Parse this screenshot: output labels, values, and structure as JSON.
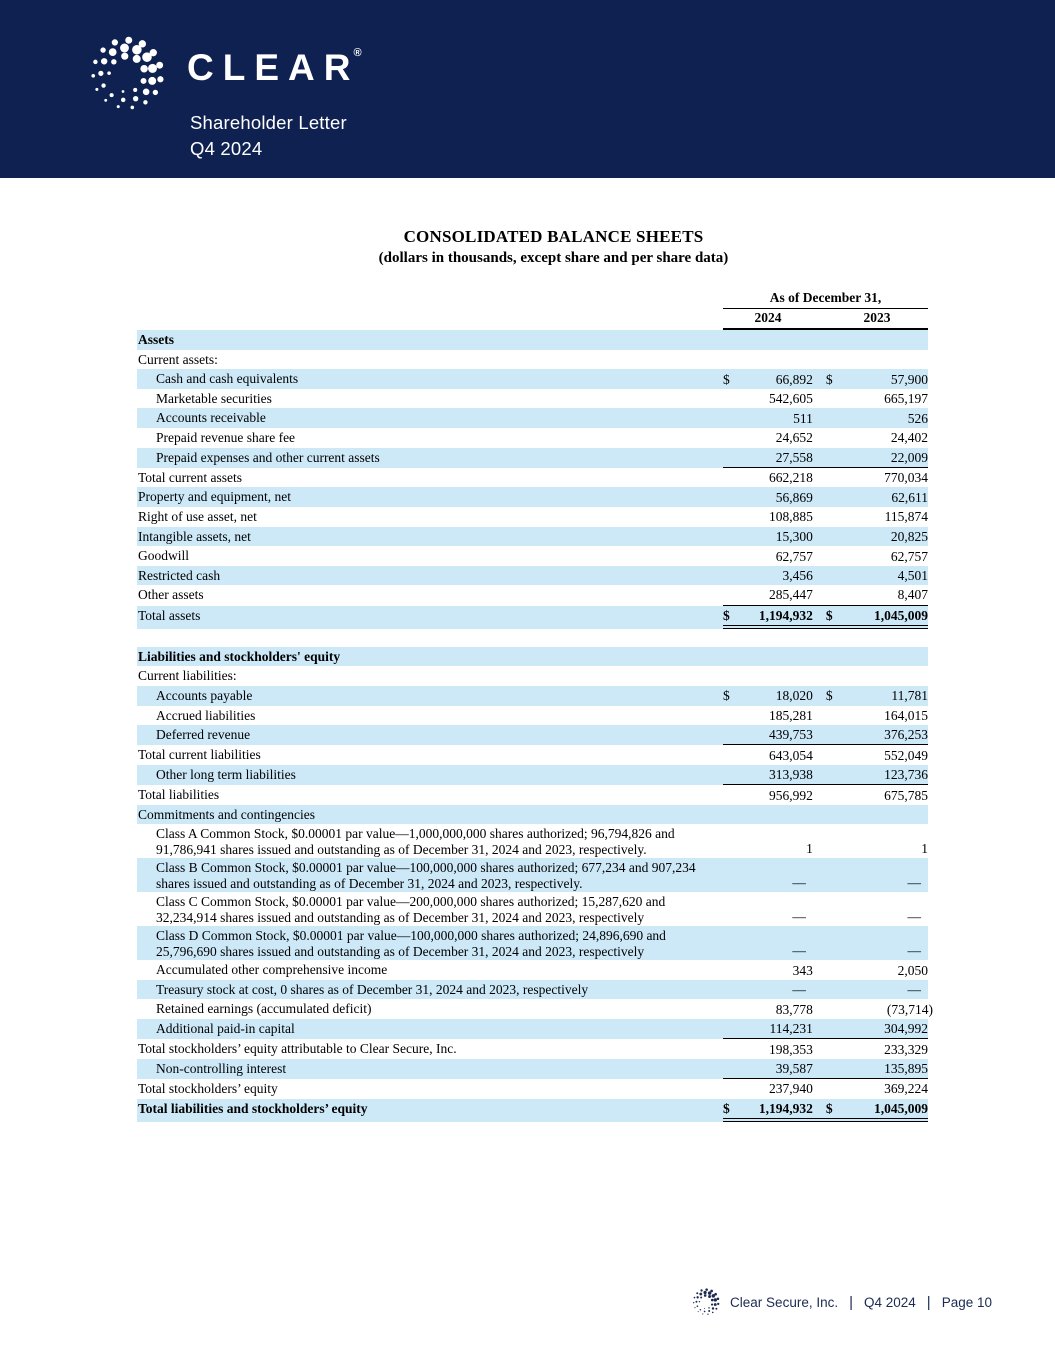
{
  "masthead": {
    "brand": "CLEAR",
    "registered_mark": "®",
    "subtitle_line1": "Shareholder Letter",
    "subtitle_line2": "Q4 2024"
  },
  "document": {
    "title": "CONSOLIDATED BALANCE SHEETS",
    "subtitle": "(dollars in thousands, except share and per share data)"
  },
  "table": {
    "period_header": "As of December 31,",
    "columns": [
      "2024",
      "2023"
    ],
    "rows": [
      {
        "label": "Assets",
        "shaded": true,
        "bold": true
      },
      {
        "label": "Current assets:"
      },
      {
        "label": "Cash and cash equivalents",
        "indent": true,
        "shaded": true,
        "dollar": true,
        "v2024": "66,892",
        "v2023": "57,900"
      },
      {
        "label": "Marketable securities",
        "indent": true,
        "v2024": "542,605",
        "v2023": "665,197"
      },
      {
        "label": "Accounts receivable",
        "indent": true,
        "shaded": true,
        "v2024": "511",
        "v2023": "526"
      },
      {
        "label": "Prepaid revenue share fee",
        "indent": true,
        "v2024": "24,652",
        "v2023": "24,402"
      },
      {
        "label": "Prepaid expenses and other current assets",
        "indent": true,
        "shaded": true,
        "rule": true,
        "v2024": "27,558",
        "v2023": "22,009"
      },
      {
        "label": "Total current assets",
        "v2024": "662,218",
        "v2023": "770,034"
      },
      {
        "label": "Property and equipment, net",
        "shaded": true,
        "v2024": "56,869",
        "v2023": "62,611"
      },
      {
        "label": "Right of use asset, net",
        "v2024": "108,885",
        "v2023": "115,874"
      },
      {
        "label": "Intangible assets, net",
        "shaded": true,
        "v2024": "15,300",
        "v2023": "20,825"
      },
      {
        "label": "Goodwill",
        "v2024": "62,757",
        "v2023": "62,757"
      },
      {
        "label": "Restricted cash",
        "shaded": true,
        "v2024": "3,456",
        "v2023": "4,501"
      },
      {
        "label": "Other assets",
        "rule": true,
        "v2024": "285,447",
        "v2023": "8,407"
      },
      {
        "label": "Total assets",
        "shaded": true,
        "dollar": true,
        "boldVals": true,
        "dbl": true,
        "v2024": "1,194,932",
        "v2023": "1,045,009"
      },
      {
        "spacer": true
      },
      {
        "label": "Liabilities and stockholders' equity",
        "shaded": true,
        "bold": true
      },
      {
        "label": "Current liabilities:"
      },
      {
        "label": "Accounts payable",
        "indent": true,
        "shaded": true,
        "dollar": true,
        "v2024": "18,020",
        "v2023": "11,781"
      },
      {
        "label": "Accrued liabilities",
        "indent": true,
        "v2024": "185,281",
        "v2023": "164,015"
      },
      {
        "label": "Deferred revenue",
        "indent": true,
        "shaded": true,
        "rule": true,
        "v2024": "439,753",
        "v2023": "376,253"
      },
      {
        "label": "Total current liabilities",
        "v2024": "643,054",
        "v2023": "552,049"
      },
      {
        "label": "Other long term liabilities",
        "indent": true,
        "shaded": true,
        "rule": true,
        "v2024": "313,938",
        "v2023": "123,736"
      },
      {
        "label": "Total liabilities",
        "v2024": "956,992",
        "v2023": "675,785"
      },
      {
        "label": "Commitments and contingencies",
        "shaded": true
      },
      {
        "label": "Class A Common Stock, $0.00001 par value—1,000,000,000 shares authorized; 96,794,826 and 91,786,941 shares issued and outstanding as of December 31, 2024 and 2023, respectively.",
        "indent": true,
        "tall": true,
        "v2024": "1",
        "v2023": "1"
      },
      {
        "label": "Class B Common Stock, $0.00001 par value—100,000,000 shares authorized; 677,234 and 907,234 shares issued and outstanding as of December 31, 2024 and 2023, respectively.",
        "indent": true,
        "tall": true,
        "shaded": true,
        "v2024": "—",
        "v2023": "—"
      },
      {
        "label": "Class C Common Stock, $0.00001 par value—200,000,000 shares authorized; 15,287,620 and 32,234,914 shares issued and outstanding as of December 31, 2024 and 2023, respectively",
        "indent": true,
        "tall": true,
        "v2024": "—",
        "v2023": "—"
      },
      {
        "label": "Class D Common Stock, $0.00001 par value—100,000,000 shares authorized; 24,896,690 and 25,796,690 shares issued and outstanding as of December 31, 2024 and 2023, respectively",
        "indent": true,
        "tall": true,
        "shaded": true,
        "v2024": "—",
        "v2023": "—"
      },
      {
        "label": "Accumulated other comprehensive income",
        "indent": true,
        "v2024": "343",
        "v2023": "2,050"
      },
      {
        "label": "Treasury stock at cost, 0 shares as of December 31, 2024 and 2023, respectively",
        "indent": true,
        "shaded": true,
        "v2024": "—",
        "v2023": "—"
      },
      {
        "label": "Retained earnings (accumulated deficit)",
        "indent": true,
        "v2024": "83,778",
        "v2023": "(73,714)"
      },
      {
        "label": "Additional paid-in capital",
        "indent": true,
        "shaded": true,
        "rule": true,
        "v2024": "114,231",
        "v2023": "304,992"
      },
      {
        "label": "Total stockholders’ equity attributable to Clear Secure, Inc.",
        "v2024": "198,353",
        "v2023": "233,329"
      },
      {
        "label": "Non-controlling interest",
        "indent": true,
        "shaded": true,
        "rule": true,
        "v2024": "39,587",
        "v2023": "135,895"
      },
      {
        "label": "Total stockholders’ equity",
        "v2024": "237,940",
        "v2023": "369,224"
      },
      {
        "label": "Total liabilities and stockholders’ equity",
        "shaded": true,
        "bold": true,
        "dollar": true,
        "boldVals": true,
        "dbl": true,
        "v2024": "1,194,932",
        "v2023": "1,045,009"
      }
    ]
  },
  "footer": {
    "company": "Clear Secure, Inc.",
    "period": "Q4 2024",
    "page": "Page 10",
    "separator": "|"
  },
  "colors": {
    "masthead_navy": "#0E2150",
    "row_highlight_blue": "#CDE9F8",
    "text_black": "#000000",
    "footer_navy": "#1B2B52"
  },
  "icons": {
    "masthead_logo": "clear-dotted-circle-logo",
    "footer_logo": "clear-dotted-circle-logo"
  }
}
